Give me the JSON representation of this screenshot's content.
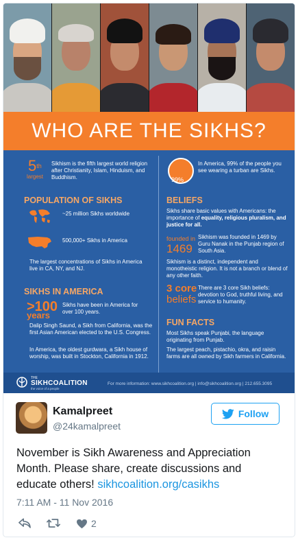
{
  "infographic": {
    "banner_title": "WHO ARE THE SIKHS?",
    "fifth": {
      "number": "5",
      "sup": "th",
      "label": "largest",
      "text": "Sikhism is the fifth largest world religion after Christianity, Islam, Hinduism, and Buddhism."
    },
    "turban": {
      "percent": "99%",
      "text": "In America, 99% of the people you see wearing a turban are Sikhs."
    },
    "population": {
      "heading": "POPULATION OF SIKHS",
      "world": "~25 million Sikhs worldwide",
      "america": "500,000+ Sikhs in America",
      "concentration": "The largest concentrations of Sikhs in America live in CA, NY, and NJ."
    },
    "beliefs": {
      "heading": "BELIEFS",
      "values_pre": "Sikhs share basic values with Americans: the importance of ",
      "values_bold": "equality, religious pluralism, and justice for all.",
      "founded_label": "founded in",
      "founded_year": "1469",
      "founded_text": "Sikhism was founded in 1469 by Guru Nanak in the Punjab region of South Asia.",
      "distinct": "Sikhism is a distinct, independent and monotheistic religion.  It is not a branch or blend of any other faith.",
      "core_number": "3 core",
      "core_label": "beliefs",
      "core_text": "There are 3 core Sikh beliefs: devotion to God, truthful living, and service to humanity."
    },
    "in_america": {
      "heading": "SIKHS IN AMERICA",
      "years_number": ">100",
      "years_label": "years",
      "years_text": "Sikhs have been in America for over 100 years.",
      "saund": "Dalip Singh Saund, a Sikh from California, was the first Asian American elected to the U.S. Congress.",
      "gurdwara": "In America, the oldest gurdwara, a Sikh house of worship, was built in Stockton, California in 1912."
    },
    "fun_facts": {
      "heading": "FUN FACTS",
      "punjabi": "Most Sikhs speak Punjabi, the language originating from Punjab.",
      "farms": "The largest peach, pistachio, okra, and raisin farms are all owned by Sikh farmers in California."
    },
    "footer": {
      "logo_the": "THE",
      "logo_name": "SIKHCOALITION",
      "logo_tagline": "the voice of a people",
      "info": "For more information: www.sikhcoalition.org  |  info@sikhcoalition.org  |  212.655.3095"
    },
    "colors": {
      "blue": "#2a5fa4",
      "orange": "#f47e2b"
    }
  },
  "tweet": {
    "display_name": "Kamalpreet",
    "handle": "@24kamalpreet",
    "follow_label": "Follow",
    "text_before_link": "November is Sikh Awareness and Appreciation Month. Please share, create discussions and educate others! ",
    "link": "sikhcoalition.org/casikhs",
    "timestamp": "7:11 AM - 11 Nov 2016",
    "like_count": "2",
    "icons": [
      "twitter-bird-icon",
      "reply-icon",
      "retweet-icon",
      "heart-icon"
    ],
    "colors": {
      "follow": "#1da1f2",
      "link": "#1b95e0",
      "muted": "#657786"
    }
  }
}
